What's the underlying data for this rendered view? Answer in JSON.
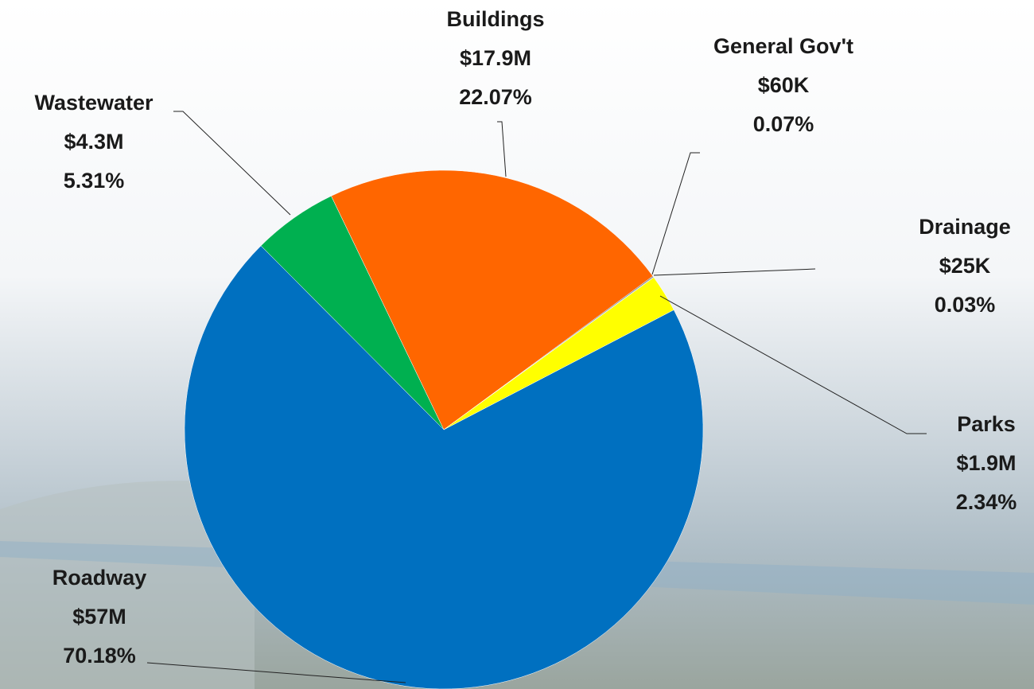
{
  "chart_data": {
    "type": "pie",
    "categories": [
      "Roadway",
      "Wastewater",
      "Buildings",
      "General Gov't",
      "Drainage",
      "Parks"
    ],
    "amounts": [
      "$57M",
      "$4.3M",
      "$17.9M",
      "$60K",
      "$25K",
      "$1.9M"
    ],
    "values": [
      70.18,
      5.31,
      22.07,
      0.07,
      0.03,
      2.34
    ],
    "value_labels": [
      "70.18%",
      "5.31%",
      "22.07%",
      "0.07%",
      "0.03%",
      "2.34%"
    ],
    "colors": [
      "#0070c0",
      "#00b050",
      "#ff6600",
      "#7f7f7f",
      "#4472c4",
      "#ffff00"
    ]
  }
}
